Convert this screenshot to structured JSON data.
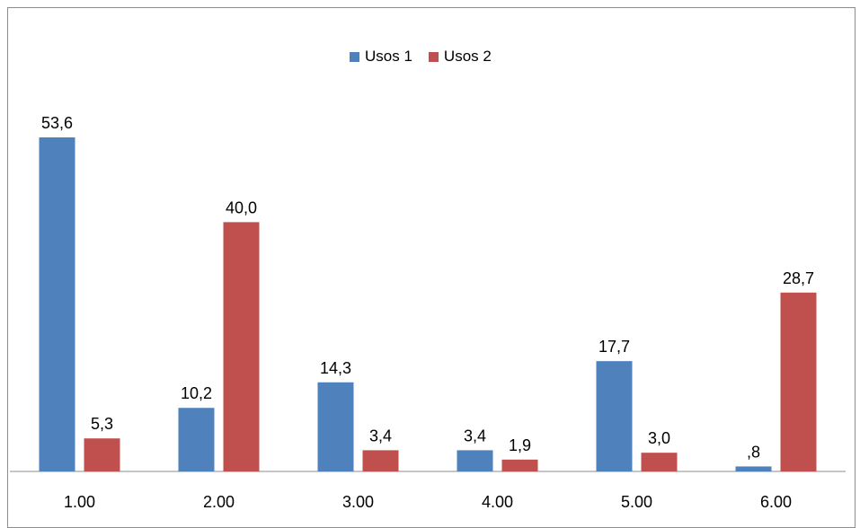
{
  "chart_data": {
    "type": "bar",
    "categories": [
      "1.00",
      "2.00",
      "3.00",
      "4.00",
      "5.00",
      "6.00"
    ],
    "series": [
      {
        "name": "Usos 1",
        "color": "#4f81bd",
        "values": [
          53.6,
          10.2,
          14.3,
          3.4,
          17.7,
          0.8
        ],
        "labels": [
          "53,6",
          "10,2",
          "14,3",
          "3,4",
          "17,7",
          ",8"
        ]
      },
      {
        "name": "Usos 2",
        "color": "#c0504d",
        "values": [
          5.3,
          40.0,
          3.4,
          1.9,
          3.0,
          28.7
        ],
        "labels": [
          "5,3",
          "40,0",
          "3,4",
          "1,9",
          "3,0",
          "28,7"
        ]
      }
    ],
    "title": "",
    "xlabel": "",
    "ylabel": "",
    "ylim": [
      0,
      60
    ],
    "grid": false,
    "legend_position": "top"
  }
}
